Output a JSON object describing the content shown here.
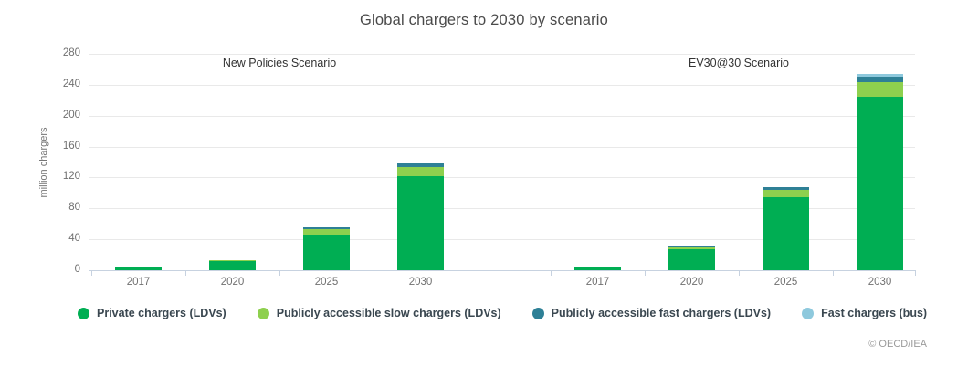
{
  "title": "Global chargers to 2030 by scenario",
  "footer": {
    "copyright": "© OECD/IEA"
  },
  "chart_data": {
    "type": "bar",
    "stacked": true,
    "title": "Global chargers to 2030 by scenario",
    "ylabel": "million chargers",
    "ylim": [
      0,
      280
    ],
    "ytick_step": 40,
    "grid": true,
    "legend_position": "bottom",
    "colors": {
      "private": "#00ae53",
      "slow_public": "#8ed04e",
      "fast_public": "#2e8096",
      "bus_fast": "#8ec9dd",
      "axis": "#c7d2e0",
      "gridline": "#e9e9e9"
    },
    "panels": [
      {
        "label": "New Policies Scenario",
        "categories": [
          "2017",
          "2020",
          "2025",
          "2030"
        ],
        "series": [
          {
            "name": "Private chargers (LDVs)",
            "key": "private",
            "color": "#00ae53",
            "values": [
              3,
              12,
              46,
              122
            ]
          },
          {
            "name": "Publicly accessible slow chargers (LDVs)",
            "key": "slow_public",
            "color": "#8ed04e",
            "values": [
              0,
              1.5,
              7,
              12
            ]
          },
          {
            "name": "Publicly accessible fast chargers (LDVs)",
            "key": "fast_public",
            "color": "#2e8096",
            "values": [
              0,
              0,
              2.5,
              4
            ]
          },
          {
            "name": "Fast chargers (bus)",
            "key": "bus_fast",
            "color": "#8ec9dd",
            "values": [
              0,
              0,
              0,
              0
            ]
          }
        ]
      },
      {
        "label": "EV30@30 Scenario",
        "categories": [
          "2017",
          "2020",
          "2025",
          "2030"
        ],
        "series": [
          {
            "name": "Private chargers (LDVs)",
            "key": "private",
            "color": "#00ae53",
            "values": [
              3,
              27,
              95,
              225
            ]
          },
          {
            "name": "Publicly accessible slow chargers (LDVs)",
            "key": "slow_public",
            "color": "#8ed04e",
            "values": [
              0,
              3,
              9,
              18
            ]
          },
          {
            "name": "Publicly accessible fast chargers (LDVs)",
            "key": "fast_public",
            "color": "#2e8096",
            "values": [
              0,
              1.5,
              3.5,
              7
            ]
          },
          {
            "name": "Fast chargers (bus)",
            "key": "bus_fast",
            "color": "#8ec9dd",
            "values": [
              0,
              0,
              0,
              4
            ]
          }
        ]
      }
    ],
    "legend": [
      "Private chargers (LDVs)",
      "Publicly accessible slow chargers (LDVs)",
      "Publicly accessible fast chargers (LDVs)",
      "Fast chargers (bus)"
    ]
  }
}
